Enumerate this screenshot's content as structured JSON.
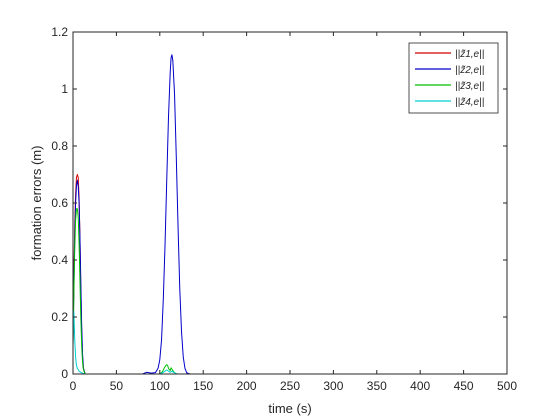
{
  "chart_data": {
    "type": "line",
    "xlabel": "time (s)",
    "ylabel": "formation errors (m)",
    "xlim": [
      0,
      500
    ],
    "ylim": [
      0,
      1.2
    ],
    "xticks": [
      "0",
      "50",
      "100",
      "150",
      "200",
      "250",
      "300",
      "350",
      "400",
      "450",
      "500"
    ],
    "yticks": [
      "0",
      "0.2",
      "0.4",
      "0.6",
      "0.8",
      "1",
      "1.2"
    ],
    "grid": false,
    "legend_position": "top-right",
    "series": [
      {
        "name": "||z̃1,e||",
        "color": "#d40000",
        "points": [
          [
            0,
            0.12
          ],
          [
            1,
            0.34
          ],
          [
            2,
            0.52
          ],
          [
            3,
            0.63
          ],
          [
            4,
            0.69
          ],
          [
            5,
            0.7
          ],
          [
            6,
            0.69
          ],
          [
            7,
            0.62
          ],
          [
            8,
            0.48
          ],
          [
            9,
            0.3
          ],
          [
            10,
            0.15
          ],
          [
            11,
            0.06
          ],
          [
            12,
            0.02
          ],
          [
            14,
            0.0
          ],
          [
            500,
            0.0
          ]
        ]
      },
      {
        "name": "||z̃2,e||",
        "color": "#0000c8",
        "points": [
          [
            0,
            0.1
          ],
          [
            1,
            0.3
          ],
          [
            2,
            0.48
          ],
          [
            3,
            0.6
          ],
          [
            4,
            0.66
          ],
          [
            5,
            0.68
          ],
          [
            6,
            0.66
          ],
          [
            7,
            0.6
          ],
          [
            8,
            0.48
          ],
          [
            9,
            0.32
          ],
          [
            10,
            0.17
          ],
          [
            11,
            0.07
          ],
          [
            12,
            0.02
          ],
          [
            14,
            0.0
          ],
          [
            80,
            0.0
          ],
          [
            85,
            0.006
          ],
          [
            90,
            0.003
          ],
          [
            95,
            0.005
          ],
          [
            98,
            0.02
          ],
          [
            100,
            0.05
          ],
          [
            102,
            0.12
          ],
          [
            104,
            0.26
          ],
          [
            106,
            0.45
          ],
          [
            108,
            0.68
          ],
          [
            110,
            0.9
          ],
          [
            112,
            1.06
          ],
          [
            113,
            1.11
          ],
          [
            114,
            1.12
          ],
          [
            115,
            1.1
          ],
          [
            117,
            0.98
          ],
          [
            119,
            0.76
          ],
          [
            121,
            0.52
          ],
          [
            123,
            0.3
          ],
          [
            125,
            0.15
          ],
          [
            127,
            0.06
          ],
          [
            129,
            0.02
          ],
          [
            131,
            0.004
          ],
          [
            135,
            0.0
          ],
          [
            500,
            0.0
          ]
        ]
      },
      {
        "name": "||z̃3,e||",
        "color": "#00c000",
        "points": [
          [
            0,
            0.1
          ],
          [
            1,
            0.28
          ],
          [
            2,
            0.44
          ],
          [
            3,
            0.54
          ],
          [
            4,
            0.58
          ],
          [
            5,
            0.58
          ],
          [
            6,
            0.55
          ],
          [
            7,
            0.46
          ],
          [
            8,
            0.33
          ],
          [
            9,
            0.2
          ],
          [
            10,
            0.1
          ],
          [
            11,
            0.04
          ],
          [
            12,
            0.015
          ],
          [
            14,
            0.0
          ],
          [
            100,
            0.0
          ],
          [
            103,
            0.008
          ],
          [
            105,
            0.02
          ],
          [
            107,
            0.03
          ],
          [
            108,
            0.033
          ],
          [
            109,
            0.03
          ],
          [
            110,
            0.02
          ],
          [
            112,
            0.012
          ],
          [
            113,
            0.022
          ],
          [
            115,
            0.012
          ],
          [
            117,
            0.004
          ],
          [
            120,
            0.0
          ],
          [
            500,
            0.0
          ]
        ]
      },
      {
        "name": "||z̃4,e||",
        "color": "#00d0d0",
        "points": [
          [
            0,
            0.13
          ],
          [
            1,
            0.22
          ],
          [
            2,
            0.12
          ],
          [
            3,
            0.06
          ],
          [
            4,
            0.03
          ],
          [
            5,
            0.02
          ],
          [
            7,
            0.01
          ],
          [
            10,
            0.004
          ],
          [
            14,
            0.0
          ],
          [
            100,
            0.0
          ],
          [
            103,
            0.004
          ],
          [
            106,
            0.01
          ],
          [
            108,
            0.014
          ],
          [
            110,
            0.01
          ],
          [
            112,
            0.006
          ],
          [
            114,
            0.01
          ],
          [
            117,
            0.004
          ],
          [
            120,
            0.0
          ],
          [
            500,
            0.0
          ]
        ]
      }
    ]
  }
}
